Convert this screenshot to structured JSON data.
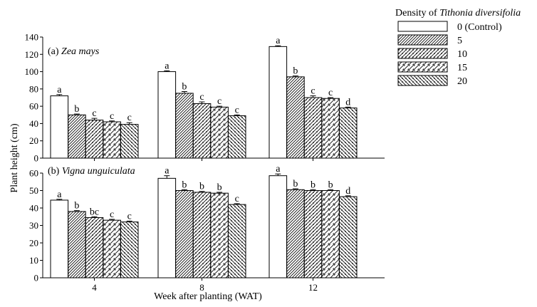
{
  "figure": {
    "y_axis_label": "Plant height (cm)",
    "x_axis_label": "Week after planting (WAT)",
    "legend": {
      "title_prefix": "Density of ",
      "title_italic": "Tithonia diversifolia",
      "placement": "top-right",
      "entries": [
        "0 (Control)",
        "5",
        "10",
        "15",
        "20"
      ],
      "patterns": [
        "none",
        "dense-diagonal",
        "diagonal",
        "sparse-diagonal",
        "back-diagonal"
      ]
    }
  },
  "chart_data": [
    {
      "type": "bar",
      "panel_prefix": "(a) ",
      "panel_species": "Zea mays",
      "categories": [
        "4",
        "8",
        "12"
      ],
      "ylim": [
        0,
        140
      ],
      "yticks": [
        0,
        20,
        40,
        60,
        80,
        100,
        120,
        140
      ],
      "series": [
        {
          "name": "0 (Control)",
          "values": [
            72,
            100,
            129
          ],
          "errors": [
            1.5,
            1,
            1
          ],
          "letters": [
            "a",
            "a",
            "a"
          ]
        },
        {
          "name": "5",
          "values": [
            50,
            75,
            94
          ],
          "errors": [
            1,
            2,
            1
          ],
          "letters": [
            "b",
            "b",
            "b"
          ]
        },
        {
          "name": "10",
          "values": [
            44,
            63,
            70
          ],
          "errors": [
            2,
            2,
            2
          ],
          "letters": [
            "c",
            "c",
            "c"
          ]
        },
        {
          "name": "15",
          "values": [
            42,
            59,
            69
          ],
          "errors": [
            1,
            1,
            1
          ],
          "letters": [
            "c",
            "c",
            "c"
          ]
        },
        {
          "name": "20",
          "values": [
            39,
            49,
            58
          ],
          "errors": [
            2,
            1,
            1
          ],
          "letters": [
            "c",
            "c",
            "d"
          ]
        }
      ]
    },
    {
      "type": "bar",
      "panel_prefix": "(b) ",
      "panel_species": "Vigna unguiculata",
      "categories": [
        "4",
        "8",
        "12"
      ],
      "ylim": [
        0,
        60
      ],
      "yticks": [
        0,
        10,
        20,
        30,
        40,
        50,
        60
      ],
      "series": [
        {
          "name": "0 (Control)",
          "values": [
            44.5,
            57,
            58.5
          ],
          "errors": [
            0.5,
            1.5,
            1
          ],
          "letters": [
            "a",
            "a",
            "a"
          ]
        },
        {
          "name": "5",
          "values": [
            38,
            50,
            50.5
          ],
          "errors": [
            0.5,
            0.5,
            0.5
          ],
          "letters": [
            "b",
            "b",
            "b"
          ]
        },
        {
          "name": "10",
          "values": [
            34.5,
            49,
            50
          ],
          "errors": [
            0.5,
            0.5,
            0.5
          ],
          "letters": [
            "bc",
            "b",
            "b"
          ]
        },
        {
          "name": "15",
          "values": [
            33,
            48.5,
            50
          ],
          "errors": [
            0.5,
            0.5,
            0.5
          ],
          "letters": [
            "c",
            "b",
            "b"
          ]
        },
        {
          "name": "20",
          "values": [
            32,
            42,
            46.5
          ],
          "errors": [
            0.5,
            0.5,
            0.5
          ],
          "letters": [
            "c",
            "c",
            "d"
          ]
        }
      ]
    }
  ]
}
